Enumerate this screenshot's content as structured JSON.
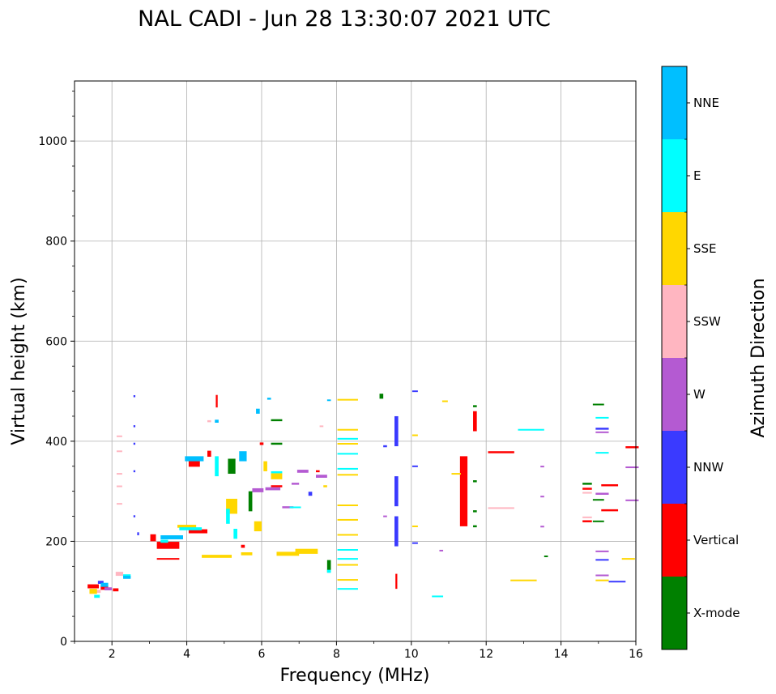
{
  "chart_data": {
    "type": "scatter",
    "title": "NAL CADI - Jun 28 13:30:07 2021 UTC",
    "xlabel": "Frequency (MHz)",
    "ylabel": "Virtual height (km)",
    "xlim": [
      1,
      16
    ],
    "ylim": [
      0,
      1120
    ],
    "xticks": [
      2,
      4,
      6,
      8,
      10,
      12,
      14,
      16
    ],
    "yticks": [
      0,
      200,
      400,
      600,
      800,
      1000
    ],
    "grid": true,
    "colorbar": {
      "label": "Azimuth Direction",
      "categories": [
        {
          "name": "X-mode",
          "color": "#008000"
        },
        {
          "name": "Vertical",
          "color": "#ff0000"
        },
        {
          "name": "NNW",
          "color": "#3a3aff"
        },
        {
          "name": "W",
          "color": "#b45ad2"
        },
        {
          "name": "SSW",
          "color": "#ffb6c1"
        },
        {
          "name": "SSE",
          "color": "#ffd700"
        },
        {
          "name": "E",
          "color": "#00ffff"
        },
        {
          "name": "NNE",
          "color": "#00bfff"
        }
      ]
    },
    "series": [
      {
        "name": "Vertical",
        "points": [
          [
            1.5,
            110,
            0.3,
            8
          ],
          [
            1.8,
            107,
            0.2,
            8
          ],
          [
            2.1,
            103,
            0.15,
            6
          ],
          [
            3.1,
            207,
            0.15,
            14
          ],
          [
            3.5,
            192,
            0.6,
            14
          ],
          [
            3.5,
            165,
            0.6,
            3
          ],
          [
            4.2,
            355,
            0.3,
            12
          ],
          [
            4.3,
            220,
            0.5,
            8
          ],
          [
            4.6,
            375,
            0.1,
            12
          ],
          [
            4.8,
            480,
            0.05,
            25
          ],
          [
            5.5,
            190,
            0.1,
            6
          ],
          [
            6.0,
            395,
            0.1,
            5
          ],
          [
            6.4,
            310,
            0.3,
            4
          ],
          [
            7.5,
            340,
            0.1,
            4
          ],
          [
            9.6,
            120,
            0.05,
            30
          ],
          [
            11.4,
            300,
            0.2,
            140
          ],
          [
            11.7,
            440,
            0.1,
            40
          ],
          [
            12.4,
            378,
            0.7,
            4
          ],
          [
            14.7,
            240,
            0.25,
            4
          ],
          [
            14.7,
            305,
            0.25,
            4
          ],
          [
            15.3,
            262,
            0.45,
            4
          ],
          [
            15.9,
            388,
            0.35,
            4
          ],
          [
            15.3,
            312,
            0.45,
            4
          ]
        ]
      },
      {
        "name": "X-mode",
        "points": [
          [
            5.2,
            350,
            0.2,
            30
          ],
          [
            5.7,
            280,
            0.1,
            40
          ],
          [
            6.4,
            395,
            0.3,
            4
          ],
          [
            6.4,
            442,
            0.3,
            4
          ],
          [
            7.8,
            150,
            0.1,
            25
          ],
          [
            9.2,
            490,
            0.1,
            10
          ],
          [
            11.7,
            320,
            0.1,
            4
          ],
          [
            11.7,
            260,
            0.1,
            4
          ],
          [
            11.7,
            230,
            0.1,
            4
          ],
          [
            13.6,
            170,
            0.1,
            3
          ],
          [
            14.7,
            315,
            0.25,
            4
          ],
          [
            15.0,
            240,
            0.3,
            3
          ],
          [
            15.0,
            283,
            0.3,
            3
          ],
          [
            15.0,
            474,
            0.3,
            2
          ],
          [
            11.7,
            470,
            0.1,
            4
          ]
        ]
      },
      {
        "name": "NNW",
        "points": [
          [
            1.7,
            118,
            0.15,
            6
          ],
          [
            2.6,
            490,
            0.05,
            4
          ],
          [
            2.6,
            430,
            0.05,
            4
          ],
          [
            2.6,
            395,
            0.05,
            4
          ],
          [
            2.6,
            340,
            0.05,
            4
          ],
          [
            2.6,
            250,
            0.05,
            4
          ],
          [
            2.7,
            215,
            0.05,
            6
          ],
          [
            9.6,
            420,
            0.1,
            60
          ],
          [
            9.6,
            300,
            0.1,
            60
          ],
          [
            9.6,
            220,
            0.1,
            60
          ],
          [
            9.3,
            390,
            0.1,
            4
          ],
          [
            10.1,
            500,
            0.15,
            3
          ],
          [
            10.1,
            350,
            0.15,
            3
          ],
          [
            10.1,
            197,
            0.15,
            2
          ],
          [
            15.1,
            425,
            0.35,
            4
          ],
          [
            15.1,
            163,
            0.35,
            3
          ],
          [
            15.5,
            120,
            0.45,
            2
          ],
          [
            7.3,
            295,
            0.1,
            8
          ]
        ]
      },
      {
        "name": "W",
        "points": [
          [
            1.9,
            105,
            0.2,
            6
          ],
          [
            5.9,
            302,
            0.3,
            8
          ],
          [
            6.3,
            305,
            0.4,
            6
          ],
          [
            6.7,
            268,
            0.3,
            4
          ],
          [
            7.1,
            340,
            0.3,
            6
          ],
          [
            7.6,
            330,
            0.3,
            6
          ],
          [
            6.9,
            315,
            0.2,
            4
          ],
          [
            9.3,
            250,
            0.1,
            3
          ],
          [
            10.8,
            182,
            0.1,
            2
          ],
          [
            13.5,
            350,
            0.1,
            2
          ],
          [
            13.5,
            290,
            0.1,
            2
          ],
          [
            13.5,
            230,
            0.1,
            2
          ],
          [
            15.1,
            418,
            0.35,
            3
          ],
          [
            15.1,
            295,
            0.35,
            4
          ],
          [
            15.1,
            180,
            0.35,
            3
          ],
          [
            15.1,
            132,
            0.35,
            3
          ],
          [
            15.9,
            348,
            0.35,
            3
          ],
          [
            15.9,
            282,
            0.35,
            3
          ]
        ]
      },
      {
        "name": "SSW",
        "points": [
          [
            1.6,
            100,
            0.2,
            6
          ],
          [
            2.2,
            135,
            0.2,
            8
          ],
          [
            2.2,
            410,
            0.15,
            3
          ],
          [
            2.2,
            380,
            0.15,
            3
          ],
          [
            2.2,
            335,
            0.15,
            3
          ],
          [
            2.2,
            310,
            0.15,
            3
          ],
          [
            2.2,
            275,
            0.15,
            3
          ],
          [
            4.6,
            440,
            0.1,
            4
          ],
          [
            7.6,
            430,
            0.1,
            3
          ],
          [
            12.4,
            267,
            0.7,
            2
          ],
          [
            14.7,
            248,
            0.25,
            3
          ],
          [
            14.7,
            297,
            0.25,
            3
          ]
        ]
      },
      {
        "name": "SSE",
        "points": [
          [
            1.5,
            100,
            0.2,
            10
          ],
          [
            4.0,
            230,
            0.5,
            6
          ],
          [
            4.8,
            170,
            0.8,
            6
          ],
          [
            5.6,
            175,
            0.3,
            6
          ],
          [
            5.2,
            270,
            0.3,
            30
          ],
          [
            5.9,
            230,
            0.2,
            20
          ],
          [
            6.4,
            330,
            0.3,
            12
          ],
          [
            6.7,
            175,
            0.6,
            8
          ],
          [
            7.2,
            180,
            0.6,
            10
          ],
          [
            7.7,
            310,
            0.1,
            4
          ],
          [
            8.3,
            483,
            0.55,
            3
          ],
          [
            8.3,
            423,
            0.55,
            3
          ],
          [
            8.3,
            395,
            0.55,
            3
          ],
          [
            8.3,
            333,
            0.55,
            3
          ],
          [
            8.3,
            272,
            0.55,
            3
          ],
          [
            8.3,
            243,
            0.55,
            3
          ],
          [
            8.3,
            213,
            0.55,
            3
          ],
          [
            8.3,
            153,
            0.55,
            3
          ],
          [
            8.3,
            123,
            0.55,
            3
          ],
          [
            10.1,
            412,
            0.15,
            3
          ],
          [
            10.1,
            230,
            0.15,
            3
          ],
          [
            10.9,
            480,
            0.15,
            3
          ],
          [
            11.2,
            335,
            0.25,
            3
          ],
          [
            13.0,
            122,
            0.7,
            3
          ],
          [
            15.1,
            122,
            0.35,
            3
          ],
          [
            15.8,
            165,
            0.35,
            3
          ],
          [
            6.1,
            350,
            0.1,
            20
          ]
        ]
      },
      {
        "name": "E",
        "points": [
          [
            1.6,
            90,
            0.15,
            6
          ],
          [
            2.4,
            130,
            0.2,
            8
          ],
          [
            3.4,
            200,
            0.2,
            6
          ],
          [
            4.1,
            225,
            0.6,
            6
          ],
          [
            4.8,
            350,
            0.1,
            40
          ],
          [
            5.1,
            250,
            0.1,
            30
          ],
          [
            5.3,
            215,
            0.1,
            20
          ],
          [
            6.4,
            338,
            0.3,
            4
          ],
          [
            6.9,
            268,
            0.3,
            3
          ],
          [
            7.8,
            140,
            0.1,
            6
          ],
          [
            8.3,
            405,
            0.55,
            3
          ],
          [
            8.3,
            375,
            0.55,
            3
          ],
          [
            8.3,
            345,
            0.55,
            3
          ],
          [
            8.3,
            183,
            0.55,
            3
          ],
          [
            8.3,
            165,
            0.55,
            3
          ],
          [
            8.3,
            105,
            0.55,
            3
          ],
          [
            10.7,
            90,
            0.3,
            3
          ],
          [
            13.2,
            423,
            0.7,
            3
          ],
          [
            15.1,
            377,
            0.35,
            3
          ],
          [
            15.1,
            447,
            0.35,
            3
          ]
        ]
      },
      {
        "name": "NNE",
        "points": [
          [
            1.8,
            113,
            0.2,
            8
          ],
          [
            2.4,
            128,
            0.2,
            6
          ],
          [
            3.6,
            208,
            0.6,
            8
          ],
          [
            4.2,
            365,
            0.5,
            10
          ],
          [
            4.8,
            440,
            0.1,
            6
          ],
          [
            5.5,
            370,
            0.2,
            20
          ],
          [
            5.9,
            460,
            0.1,
            10
          ],
          [
            6.2,
            485,
            0.1,
            4
          ],
          [
            7.8,
            482,
            0.1,
            3
          ]
        ]
      }
    ]
  }
}
